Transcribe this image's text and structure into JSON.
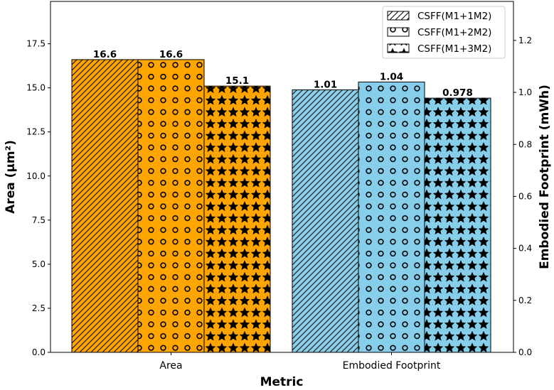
{
  "chart_data": {
    "type": "bar",
    "title": "",
    "xlabel": "Metric",
    "ylabel_left": "Area (μm²)",
    "ylabel_right": "Embodied Footprint (mWh)",
    "categories": [
      "Area",
      "Embodied Footprint"
    ],
    "category_colors": [
      "#FFA500",
      "#87CEEB"
    ],
    "series": [
      {
        "name": "CSFF(M1+1M2)",
        "pattern": "hatch",
        "values": [
          16.6,
          1.01
        ],
        "labels": [
          "16.6",
          "1.01"
        ]
      },
      {
        "name": "CSFF(M1+2M2)",
        "pattern": "circles",
        "values": [
          16.6,
          1.04
        ],
        "labels": [
          "16.6",
          "1.04"
        ]
      },
      {
        "name": "CSFF(M1+3M2)",
        "pattern": "stars",
        "values": [
          15.1,
          0.978
        ],
        "labels": [
          "15.1",
          "0.978"
        ]
      }
    ],
    "value_axis": [
      "left",
      "right"
    ],
    "ylim_left": [
      0,
      19.9
    ],
    "ylim_right": [
      0,
      1.35
    ],
    "yticks_left": [
      "0.0",
      "2.5",
      "5.0",
      "7.5",
      "10.0",
      "12.5",
      "15.0",
      "17.5"
    ],
    "yticks_right": [
      "0.0",
      "0.2",
      "0.4",
      "0.6",
      "0.8",
      "1.0",
      "1.2"
    ],
    "grid": false,
    "legend_position": "top-right"
  }
}
